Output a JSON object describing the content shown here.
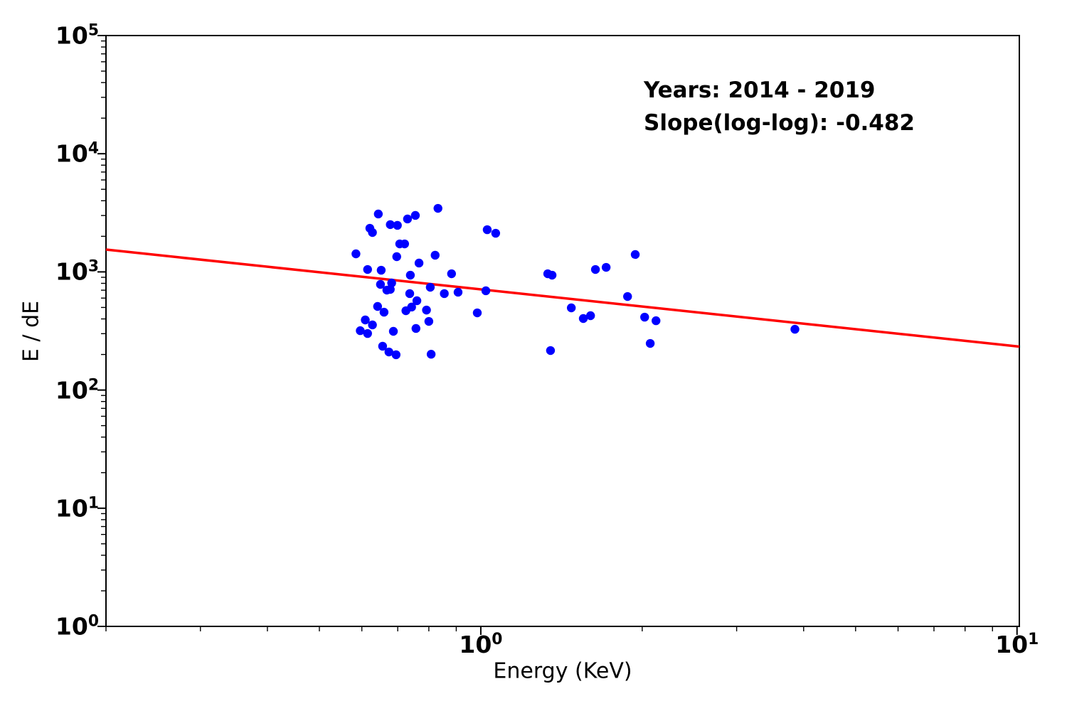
{
  "figure": {
    "background": "#ffffff",
    "spine_color": "#000000",
    "tick_color": "#000000"
  },
  "chart_data": {
    "type": "scatter",
    "xlabel": "Energy (KeV)",
    "ylabel": "E / dE",
    "xscale": "log",
    "yscale": "log",
    "xlim": [
      0.2,
      10.1
    ],
    "ylim": [
      1,
      100000
    ],
    "x_major_ticks": [
      1,
      10
    ],
    "y_major_ticks": [
      1,
      10,
      100,
      1000,
      10000,
      100000
    ],
    "grid": false,
    "legend": "none",
    "marker_color": "#0000ff",
    "line_color": "#ff0000",
    "annotation": {
      "years": "Years: 2014 - 2019",
      "slope": "Slope(log-log): -0.482"
    },
    "fit_line": {
      "slope_loglog": -0.482,
      "value_at_1kev": 711,
      "x_start": 0.2,
      "x_end": 10.1
    },
    "points": [
      [
        0.832,
        3450
      ],
      [
        0.644,
        3090
      ],
      [
        0.755,
        3006
      ],
      [
        0.73,
        2805
      ],
      [
        0.678,
        2512
      ],
      [
        0.699,
        2477
      ],
      [
        0.621,
        2340
      ],
      [
        1.028,
        2275
      ],
      [
        0.628,
        2153
      ],
      [
        1.066,
        2123
      ],
      [
        0.706,
        1725
      ],
      [
        0.721,
        1725
      ],
      [
        0.585,
        1422
      ],
      [
        0.822,
        1384
      ],
      [
        0.697,
        1345
      ],
      [
        0.767,
        1188
      ],
      [
        0.615,
        1048
      ],
      [
        0.652,
        1033
      ],
      [
        0.882,
        964
      ],
      [
        0.739,
        938
      ],
      [
        0.682,
        806
      ],
      [
        0.65,
        784
      ],
      [
        0.805,
        741
      ],
      [
        0.678,
        711
      ],
      [
        0.668,
        701
      ],
      [
        0.907,
        673
      ],
      [
        1.022,
        692
      ],
      [
        0.737,
        655
      ],
      [
        0.855,
        655
      ],
      [
        0.76,
        570
      ],
      [
        0.642,
        510
      ],
      [
        0.743,
        504
      ],
      [
        0.792,
        475
      ],
      [
        0.725,
        469
      ],
      [
        0.66,
        456
      ],
      [
        0.985,
        450
      ],
      [
        0.609,
        392
      ],
      [
        0.8,
        381
      ],
      [
        0.628,
        356
      ],
      [
        0.757,
        332
      ],
      [
        0.596,
        318
      ],
      [
        0.687,
        314
      ],
      [
        0.615,
        301
      ],
      [
        0.656,
        235
      ],
      [
        0.674,
        210
      ],
      [
        0.695,
        199
      ],
      [
        0.808,
        201
      ],
      [
        1.941,
        1403
      ],
      [
        1.713,
        1092
      ],
      [
        1.636,
        1048
      ],
      [
        1.333,
        964
      ],
      [
        1.358,
        938
      ],
      [
        1.878,
        619
      ],
      [
        1.475,
        496
      ],
      [
        1.602,
        426
      ],
      [
        1.553,
        403
      ],
      [
        2.021,
        414
      ],
      [
        2.122,
        386
      ],
      [
        2.07,
        248
      ],
      [
        1.349,
        216
      ],
      [
        3.853,
        327
      ]
    ]
  }
}
